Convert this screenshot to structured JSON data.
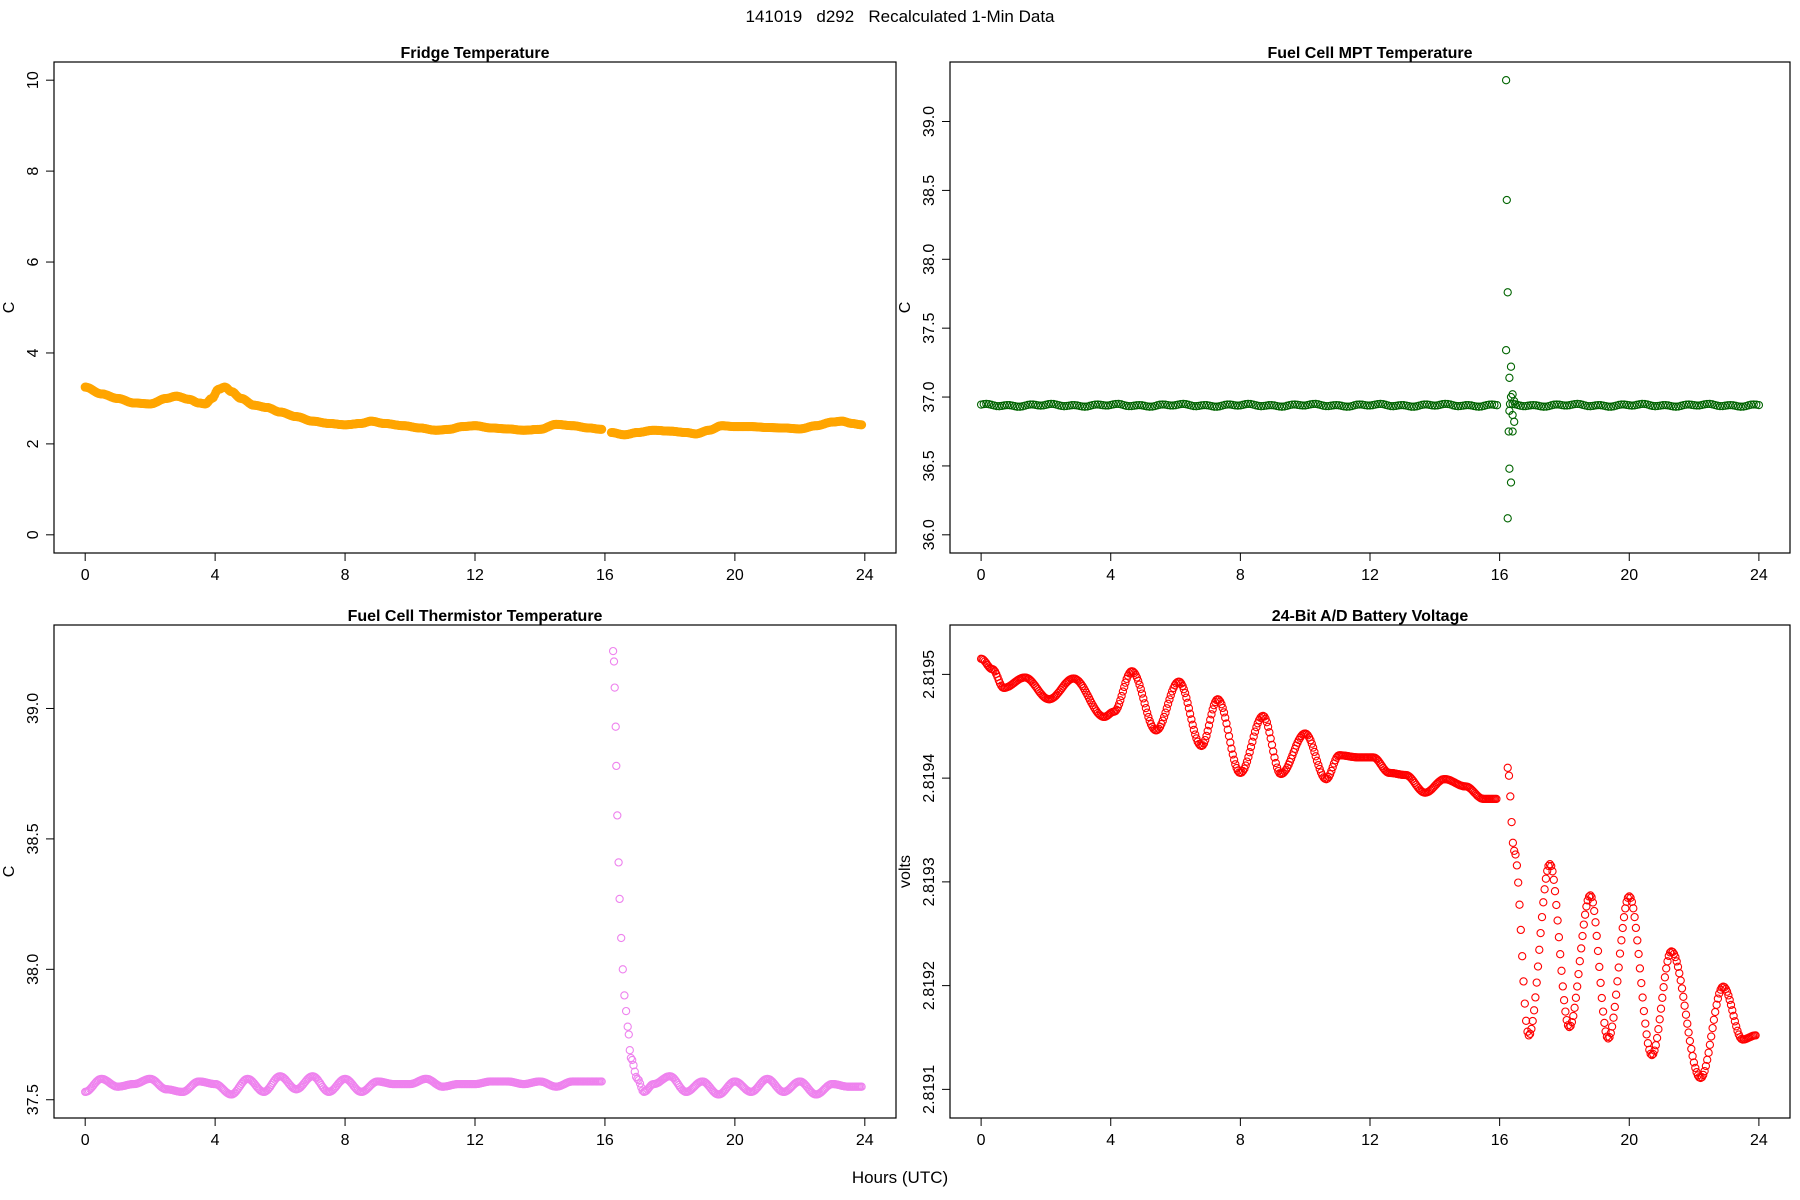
{
  "title": "141019   d292   Recalculated 1-Min Data",
  "xlabel": "Hours (UTC)",
  "chart_data": [
    {
      "type": "scatter",
      "title": "Fridge Temperature",
      "xlabel": "",
      "ylabel": "C",
      "xlim": [
        0,
        24
      ],
      "ylim": [
        0,
        10
      ],
      "xticks": [
        0,
        4,
        8,
        12,
        16,
        20,
        24
      ],
      "yticks": [
        0,
        2,
        4,
        6,
        8,
        10
      ],
      "ytick_labels": [
        "0",
        "2",
        "4",
        "6",
        "8",
        "10"
      ],
      "color": "#FFA500",
      "marker": "filled-circle",
      "series": [
        {
          "x": [
            0,
            0.5,
            1.0,
            1.5,
            2.0,
            2.5,
            2.8,
            3.2,
            3.5,
            3.7,
            3.9,
            4.1,
            4.3,
            4.5,
            4.8,
            5.2,
            5.6,
            6.0,
            6.5,
            7.0,
            7.5,
            8.0,
            8.5,
            8.8,
            9.2,
            9.8,
            10.3,
            10.8,
            11.2,
            11.6,
            12.0,
            12.5,
            13.0,
            13.5,
            14.0,
            14.5,
            15.0,
            15.5,
            15.9
          ],
          "y": [
            3.25,
            3.1,
            3.0,
            2.9,
            2.88,
            3.0,
            3.05,
            2.98,
            2.9,
            2.88,
            3.0,
            3.2,
            3.25,
            3.15,
            3.0,
            2.85,
            2.8,
            2.7,
            2.6,
            2.5,
            2.45,
            2.42,
            2.45,
            2.5,
            2.45,
            2.4,
            2.35,
            2.3,
            2.32,
            2.38,
            2.4,
            2.35,
            2.33,
            2.3,
            2.32,
            2.43,
            2.4,
            2.35,
            2.32
          ]
        },
        {
          "x": [
            16.2,
            16.6,
            17.0,
            17.5,
            18.0,
            18.5,
            18.8,
            19.2,
            19.6,
            20.0,
            20.5,
            21.0,
            21.5,
            22.0,
            22.5,
            23.0,
            23.3,
            23.6,
            23.9
          ],
          "y": [
            2.25,
            2.2,
            2.25,
            2.3,
            2.28,
            2.25,
            2.22,
            2.3,
            2.4,
            2.38,
            2.38,
            2.36,
            2.35,
            2.33,
            2.4,
            2.48,
            2.5,
            2.45,
            2.42
          ]
        }
      ]
    },
    {
      "type": "scatter",
      "title": "Fuel Cell MPT Temperature",
      "xlabel": "",
      "ylabel": "C",
      "xlim": [
        0,
        24
      ],
      "ylim": [
        36.0,
        39.3
      ],
      "xticks": [
        0,
        4,
        8,
        12,
        16,
        20,
        24
      ],
      "yticks": [
        36.0,
        36.5,
        37.0,
        37.5,
        38.0,
        38.5,
        39.0
      ],
      "ytick_labels": [
        "36.0",
        "36.5",
        "37.0",
        "37.5",
        "38.0",
        "38.5",
        "39.0"
      ],
      "color": "#006400",
      "marker": "open-circle",
      "baseline": 36.94,
      "series": [
        {
          "x": [
            16.2,
            16.22,
            16.25,
            16.2,
            16.35,
            16.3,
            16.4,
            16.35,
            16.45,
            16.3,
            16.4,
            16.45,
            16.28,
            16.4,
            16.3,
            16.35,
            16.25
          ],
          "y": [
            39.3,
            38.43,
            37.76,
            37.34,
            37.22,
            37.14,
            37.02,
            37.0,
            36.97,
            36.9,
            36.87,
            36.82,
            36.75,
            36.75,
            36.48,
            36.38,
            36.12
          ]
        }
      ]
    },
    {
      "type": "scatter",
      "title": "Fuel Cell Thermistor Temperature",
      "xlabel": "",
      "ylabel": "C",
      "xlim": [
        0,
        24
      ],
      "ylim": [
        37.5,
        39.25
      ],
      "xticks": [
        0,
        4,
        8,
        12,
        16,
        20,
        24
      ],
      "yticks": [
        37.5,
        38.0,
        38.5,
        39.0
      ],
      "ytick_labels": [
        "37.5",
        "38.0",
        "38.5",
        "39.0"
      ],
      "color": "#EE82EE",
      "marker": "open-circle",
      "series": [
        {
          "x": [
            0,
            0.5,
            1.0,
            1.5,
            2.0,
            2.5,
            3.0,
            3.5,
            4.0,
            4.5,
            5.0,
            5.5,
            6.0,
            6.5,
            7.0,
            7.5,
            8.0,
            8.5,
            9.0,
            9.5,
            10.0,
            10.5,
            11.0,
            11.5,
            12.0,
            12.5,
            13.0,
            13.5,
            14.0,
            14.5,
            15.0,
            15.5,
            15.9
          ],
          "y": [
            37.53,
            37.58,
            37.55,
            37.56,
            37.58,
            37.54,
            37.53,
            37.57,
            37.56,
            37.52,
            37.58,
            37.53,
            37.59,
            37.54,
            37.59,
            37.53,
            37.58,
            37.53,
            37.57,
            37.56,
            37.56,
            37.58,
            37.55,
            37.56,
            37.56,
            37.57,
            37.57,
            37.56,
            37.57,
            37.55,
            37.57,
            37.57,
            37.57
          ]
        },
        {
          "x": [
            16.25,
            16.28,
            16.3,
            16.33,
            16.35,
            16.38,
            16.42,
            16.45,
            16.5,
            16.55,
            16.6,
            16.7,
            16.8,
            17.0,
            17.2,
            17.5,
            18.0,
            18.5,
            19.0,
            19.5,
            20.0,
            20.5,
            21.0,
            21.5,
            22.0,
            22.5,
            23.0,
            23.5,
            23.9
          ],
          "y": [
            39.22,
            39.18,
            39.08,
            38.93,
            38.78,
            38.59,
            38.41,
            38.27,
            38.12,
            38.0,
            37.9,
            37.78,
            37.66,
            37.58,
            37.53,
            37.56,
            37.59,
            37.53,
            37.57,
            37.52,
            37.57,
            37.53,
            37.58,
            37.53,
            37.57,
            37.52,
            37.56,
            37.55,
            37.55
          ]
        }
      ]
    },
    {
      "type": "scatter",
      "title": "24-Bit A/D Battery Voltage",
      "xlabel": "",
      "ylabel": "volts",
      "xlim": [
        0,
        24
      ],
      "ylim": [
        2.81909,
        2.81953
      ],
      "xticks": [
        0,
        4,
        8,
        12,
        16,
        20,
        24
      ],
      "yticks": [
        2.8191,
        2.8192,
        2.8193,
        2.8194,
        2.8195
      ],
      "ytick_labels": [
        "2.8191",
        "2.8192",
        "2.8193",
        "2.8194",
        "2.8195"
      ],
      "color": "#FF0000",
      "marker": "open-circle",
      "series": [
        {
          "x": [
            0.0,
            0.35,
            0.7,
            1.35,
            2.1,
            2.85,
            3.8,
            4.1,
            4.65,
            5.4,
            6.1,
            6.8,
            7.3,
            8.0,
            8.7,
            9.25,
            10.0,
            10.65,
            11.05,
            11.65,
            12.1,
            12.6,
            13.1,
            13.7,
            14.3,
            14.95,
            15.5,
            15.9
          ],
          "y": [
            2.819515,
            2.819505,
            2.819487,
            2.819497,
            2.819476,
            2.819496,
            2.819459,
            2.819464,
            2.819503,
            2.819446,
            2.819493,
            2.819431,
            2.819476,
            2.819405,
            2.81946,
            2.819404,
            2.819443,
            2.819399,
            2.819422,
            2.81942,
            2.81942,
            2.819405,
            2.819403,
            2.819386,
            2.819399,
            2.819392,
            2.81938,
            2.81938
          ]
        },
        {
          "x": [
            16.25,
            16.45,
            16.9,
            17.55,
            18.15,
            18.8,
            19.35,
            20.0,
            20.7,
            21.3,
            22.2,
            22.9,
            23.5,
            23.9
          ],
          "y": [
            2.81941,
            2.81933,
            2.819152,
            2.819317,
            2.81916,
            2.819287,
            2.819149,
            2.819286,
            2.819133,
            2.819233,
            2.819111,
            2.819199,
            2.819148,
            2.819152
          ]
        }
      ]
    }
  ]
}
